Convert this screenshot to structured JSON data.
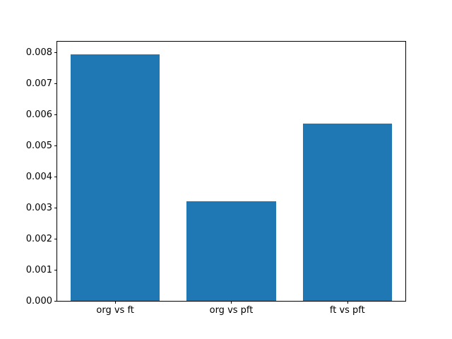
{
  "figure": {
    "background_color": "#ffffff",
    "bar_color": "#1f77b4",
    "axis_color": "#000000",
    "text_color": "#000000"
  },
  "chart_data": {
    "type": "bar",
    "categories": [
      "org vs ft",
      "org vs pft",
      "ft vs pft"
    ],
    "values": [
      0.00795,
      0.0032,
      0.00572
    ],
    "title": "",
    "xlabel": "",
    "ylabel": "",
    "ylim": [
      0,
      0.00835
    ],
    "yticks": [
      {
        "value": 0.0,
        "label": "0.000"
      },
      {
        "value": 0.001,
        "label": "0.001"
      },
      {
        "value": 0.002,
        "label": "0.002"
      },
      {
        "value": 0.003,
        "label": "0.003"
      },
      {
        "value": 0.004,
        "label": "0.004"
      },
      {
        "value": 0.005,
        "label": "0.005"
      },
      {
        "value": 0.006,
        "label": "0.006"
      },
      {
        "value": 0.007,
        "label": "0.007"
      },
      {
        "value": 0.008,
        "label": "0.008"
      }
    ],
    "grid": false,
    "legend": null
  }
}
